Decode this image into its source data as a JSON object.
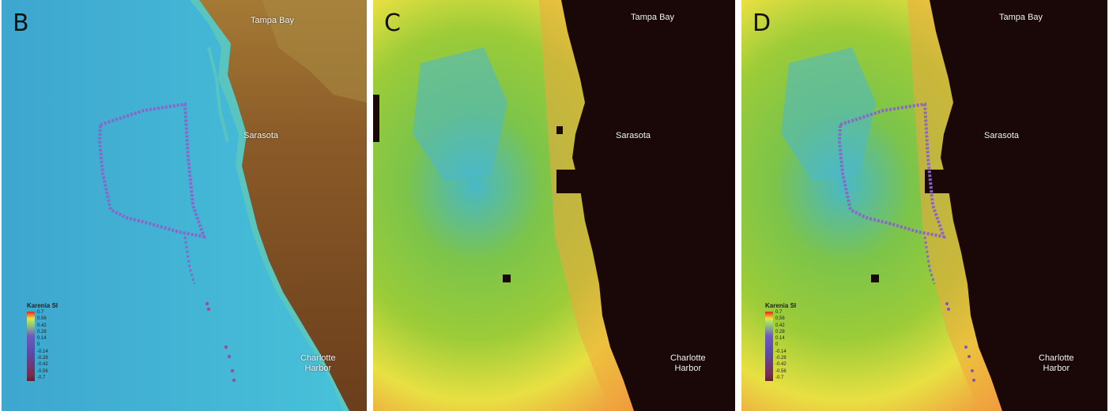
{
  "panels": [
    {
      "id": "B",
      "letter": "B",
      "places": {
        "tampa": "Tampa Bay",
        "sarasota": "Sarasota",
        "charlotte": "Charlotte\nHarbor"
      },
      "legend": {
        "title": "Karenia SI",
        "ticks": [
          "0.7",
          "0.56",
          "0.42",
          "0.28",
          "0.14",
          "0",
          "-0.14",
          "-0.28",
          "-0.42",
          "-0.56",
          "-0.7"
        ]
      }
    },
    {
      "id": "C",
      "letter": "C",
      "places": {
        "tampa": "Tampa Bay",
        "sarasota": "Sarasota",
        "charlotte": "Charlotte\nHarbor"
      }
    },
    {
      "id": "D",
      "letter": "D",
      "places": {
        "tampa": "Tampa Bay",
        "sarasota": "Sarasota",
        "charlotte": "Charlotte\nHarbor"
      },
      "legend": {
        "title": "Karenia SI",
        "ticks": [
          "0.7",
          "0.56",
          "0.42",
          "0.28",
          "0.14",
          "0",
          "-0.14",
          "-0.28",
          "-0.42",
          "-0.56",
          "-0.7"
        ]
      }
    }
  ],
  "colors": {
    "water": "#3fb3d6",
    "land": "#7a4a22",
    "land_far": "#a5762e",
    "mask": "#1a0808",
    "index_low": "#3ab7d4",
    "index_mid": "#8cc83a",
    "index_high": "#f0e040",
    "index_max": "#ee6a32"
  }
}
